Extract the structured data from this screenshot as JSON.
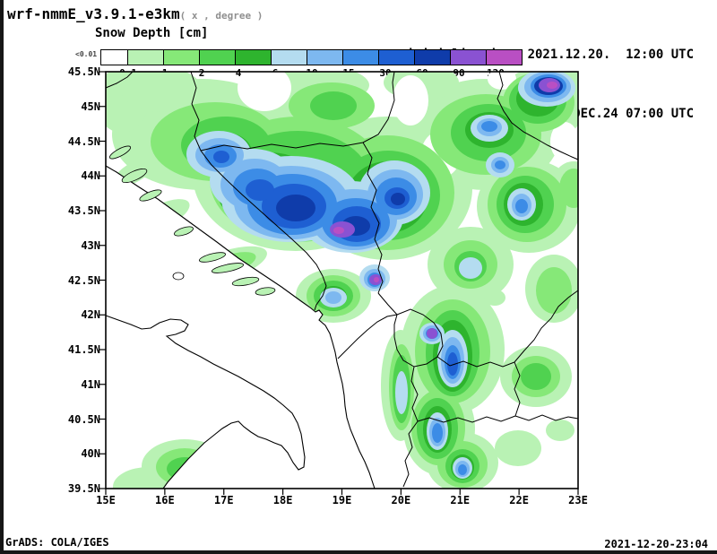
{
  "header": {
    "model_title": "wrf-nmmE_v3.9.1-e3km",
    "model_subtitle": "( x , degree )",
    "field_title": "Snow Depth [cm]",
    "init_label": "initialisation: 2021.12.20.  12:00 UTC",
    "valid_label": "valid(+91h): 2021.DEC.24 07:00 UTC"
  },
  "legend": {
    "min_label": "<0.01",
    "labels": [
      "0.1",
      "1",
      "2",
      "4",
      "6",
      "10",
      "15",
      "30",
      "60",
      "90",
      "120"
    ],
    "stops": [
      {
        "range": "below-0.1",
        "color": "#ffffff"
      },
      {
        "range": "0.1-1",
        "color": "#b9f2b4"
      },
      {
        "range": "1-2",
        "color": "#86e878"
      },
      {
        "range": "2-4",
        "color": "#50d250"
      },
      {
        "range": "4-6",
        "color": "#2eb42e"
      },
      {
        "range": "6-10",
        "color": "#b4dcf0"
      },
      {
        "range": "10-15",
        "color": "#7db8f0"
      },
      {
        "range": "15-30",
        "color": "#3c8ce6"
      },
      {
        "range": "30-60",
        "color": "#1e5fd2"
      },
      {
        "range": "60-90",
        "color": "#0f3caa"
      },
      {
        "range": "90-120",
        "color": "#8a52d2"
      },
      {
        "range": "above-120",
        "color": "#b94fc3"
      }
    ]
  },
  "map": {
    "lat_labels": [
      "45.5N",
      "45N",
      "44.5N",
      "44N",
      "43.5N",
      "43N",
      "42.5N",
      "42N",
      "41.5N",
      "41N",
      "40.5N",
      "40N",
      "39.5N"
    ],
    "lon_labels": [
      "15E",
      "16E",
      "17E",
      "18E",
      "19E",
      "20E",
      "21E",
      "22E",
      "23E"
    ]
  },
  "footer": {
    "grads_credit": "GrADS: COLA/IGES",
    "timestamp": "2021-12-20-23:04"
  }
}
